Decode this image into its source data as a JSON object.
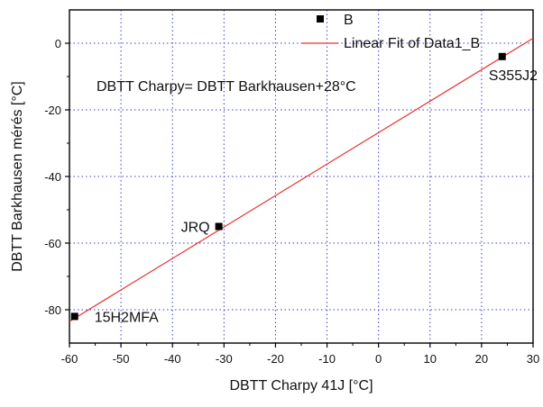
{
  "chart_data": {
    "type": "scatter",
    "xlabel": "DBTT Charpy 41J [°C]",
    "ylabel": "DBTT Barkhausen mérés [°C]",
    "xlim": [
      -60,
      30
    ],
    "ylim": [
      -90,
      10
    ],
    "xticks": [
      -60,
      -50,
      -40,
      -30,
      -20,
      -10,
      0,
      10,
      20,
      30
    ],
    "yticks": [
      -80,
      -60,
      -40,
      -20,
      0
    ],
    "grid": true,
    "legend_position": "top-right",
    "series": [
      {
        "name": "B",
        "kind": "scatter",
        "color": "#000000",
        "points": [
          {
            "x": -59,
            "y": -82,
            "label": "15H2MFA"
          },
          {
            "x": -31,
            "y": -55,
            "label": "JRQ"
          },
          {
            "x": 24,
            "y": -4,
            "label": "S355J2"
          }
        ]
      },
      {
        "name": "Linear Fit of Data1_B",
        "kind": "line",
        "color": "#e8332f",
        "points": [
          {
            "x": -60,
            "y": -83.5
          },
          {
            "x": 30,
            "y": 1.5
          }
        ]
      }
    ],
    "annotation": "DBTT Charpy= DBTT Barkhausen+28°C"
  }
}
